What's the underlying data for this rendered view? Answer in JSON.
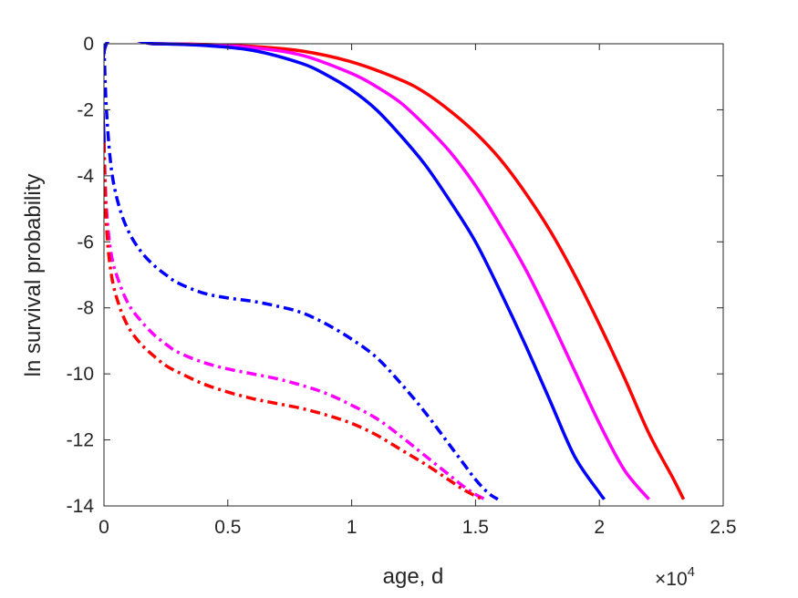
{
  "chart_data": {
    "type": "line",
    "title": "",
    "xlabel": "age, d",
    "ylabel": "ln survival probability",
    "x_exponent_label": "×10",
    "x_exponent_power": "4",
    "xlim": [
      0,
      25000
    ],
    "ylim": [
      -14,
      0
    ],
    "xticks": [
      0,
      5000,
      10000,
      15000,
      20000,
      25000
    ],
    "xtick_labels": [
      "0",
      "0.5",
      "1",
      "1.5",
      "2",
      "2.5"
    ],
    "yticks": [
      0,
      -2,
      -4,
      -6,
      -8,
      -10,
      -12,
      -14
    ],
    "ytick_labels": [
      "0",
      "-2",
      "-4",
      "-6",
      "-8",
      "-10",
      "-12",
      "-14"
    ],
    "grid": false,
    "series": [
      {
        "color": "#ff0000",
        "style": "solid",
        "x": [
          0,
          100,
          2000,
          4000,
          6000,
          8000,
          10000,
          12000,
          13000,
          14000,
          15000,
          16000,
          17000,
          18000,
          19000,
          20000,
          21000,
          22000,
          23000,
          23400
        ],
        "y": [
          -3.0,
          0,
          0,
          -0.02,
          -0.08,
          -0.22,
          -0.55,
          -1.1,
          -1.5,
          -2.05,
          -2.7,
          -3.5,
          -4.5,
          -5.65,
          -7.0,
          -8.5,
          -10.1,
          -11.8,
          -13.2,
          -13.8
        ]
      },
      {
        "color": "#ff00ff",
        "style": "solid",
        "x": [
          0,
          100,
          2000,
          4000,
          6000,
          8000,
          10000,
          11000,
          12000,
          13000,
          14000,
          15000,
          16000,
          17000,
          18000,
          19000,
          20000,
          21000,
          22000
        ],
        "y": [
          -3.0,
          0,
          0,
          -0.03,
          -0.12,
          -0.35,
          -0.9,
          -1.3,
          -1.8,
          -2.5,
          -3.3,
          -4.3,
          -5.5,
          -6.8,
          -8.3,
          -9.9,
          -11.5,
          -12.9,
          -13.8
        ]
      },
      {
        "color": "#0000ff",
        "style": "solid",
        "x": [
          0,
          100,
          2000,
          4000,
          6000,
          8000,
          9000,
          10000,
          11000,
          12000,
          13000,
          14000,
          15000,
          16000,
          17000,
          18000,
          19000,
          20000,
          20200
        ],
        "y": [
          -3.0,
          0,
          0,
          -0.05,
          -0.2,
          -0.6,
          -0.95,
          -1.4,
          -2.0,
          -2.8,
          -3.7,
          -4.8,
          -6.0,
          -7.5,
          -9.1,
          -10.8,
          -12.5,
          -13.6,
          -13.8
        ]
      },
      {
        "color": "#0000ff",
        "style": "dashdot",
        "x": [
          0,
          100,
          300,
          600,
          1000,
          1500,
          2000,
          2500,
          3000,
          4000,
          5000,
          6000,
          7000,
          8000,
          9000,
          10000,
          11000,
          12000,
          13000,
          14000,
          14500,
          15000,
          15500,
          15900
        ],
        "y": [
          0,
          -2.0,
          -3.8,
          -4.9,
          -5.7,
          -6.3,
          -6.7,
          -7.0,
          -7.25,
          -7.55,
          -7.7,
          -7.8,
          -7.95,
          -8.15,
          -8.5,
          -8.95,
          -9.5,
          -10.3,
          -11.2,
          -12.2,
          -12.7,
          -13.2,
          -13.6,
          -13.8
        ]
      },
      {
        "color": "#ff00ff",
        "style": "dashdot",
        "x": [
          0,
          100,
          300,
          600,
          1000,
          1500,
          2000,
          2500,
          3000,
          4000,
          5000,
          6000,
          7000,
          8000,
          9000,
          10000,
          11000,
          12000,
          13000,
          14000,
          14500,
          15000,
          15400
        ],
        "y": [
          -3.0,
          -5.0,
          -6.4,
          -7.2,
          -7.9,
          -8.4,
          -8.8,
          -9.1,
          -9.35,
          -9.65,
          -9.85,
          -10.0,
          -10.15,
          -10.35,
          -10.6,
          -10.95,
          -11.35,
          -11.9,
          -12.5,
          -13.1,
          -13.4,
          -13.65,
          -13.8
        ]
      },
      {
        "color": "#ff0000",
        "style": "dashdot",
        "x": [
          0,
          100,
          300,
          600,
          1000,
          1500,
          2000,
          2500,
          3000,
          4000,
          5000,
          6000,
          7000,
          8000,
          9000,
          10000,
          11000,
          12000,
          13000,
          14000,
          14500,
          15000,
          15300
        ],
        "y": [
          -3.0,
          -5.5,
          -7.0,
          -7.9,
          -8.6,
          -9.1,
          -9.45,
          -9.75,
          -9.95,
          -10.3,
          -10.55,
          -10.75,
          -10.9,
          -11.05,
          -11.25,
          -11.5,
          -11.85,
          -12.3,
          -12.75,
          -13.25,
          -13.5,
          -13.7,
          -13.8
        ]
      }
    ]
  }
}
